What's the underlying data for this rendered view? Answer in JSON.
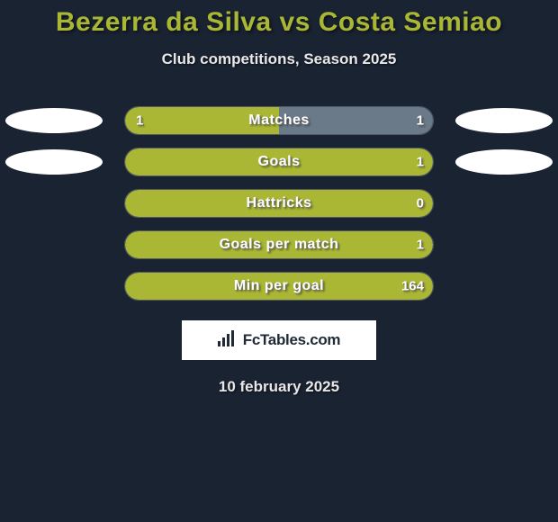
{
  "title": "Bezerra da Silva vs Costa Semiao",
  "subtitle": "Club competitions, Season 2025",
  "date": "10 february 2025",
  "brand": "FcTables.com",
  "colors": {
    "background": "#1a2332",
    "title": "#aab735",
    "barLeft": "#aab735",
    "barRight": "#6a7a88",
    "barRightAlt": "#5f7080",
    "ellipse": "#ffffff",
    "text": "#e8e8e8"
  },
  "bars": [
    {
      "label": "Matches",
      "left_value": "1",
      "right_value": "1",
      "left_pct": 50,
      "right_pct": 50,
      "left_color": "#aab735",
      "right_color": "#6a7a88",
      "show_ellipses": true
    },
    {
      "label": "Goals",
      "left_value": "",
      "right_value": "1",
      "left_pct": 100,
      "right_pct": 0,
      "left_color": "#aab735",
      "right_color": "#6a7a88",
      "show_ellipses": true
    },
    {
      "label": "Hattricks",
      "left_value": "",
      "right_value": "0",
      "left_pct": 100,
      "right_pct": 0,
      "left_color": "#aab735",
      "right_color": "#6a7a88",
      "show_ellipses": false
    },
    {
      "label": "Goals per match",
      "left_value": "",
      "right_value": "1",
      "left_pct": 100,
      "right_pct": 0,
      "left_color": "#aab735",
      "right_color": "#6a7a88",
      "show_ellipses": false
    },
    {
      "label": "Min per goal",
      "left_value": "",
      "right_value": "164",
      "left_pct": 100,
      "right_pct": 0,
      "left_color": "#aab735",
      "right_color": "#6a7a88",
      "show_ellipses": false
    }
  ]
}
